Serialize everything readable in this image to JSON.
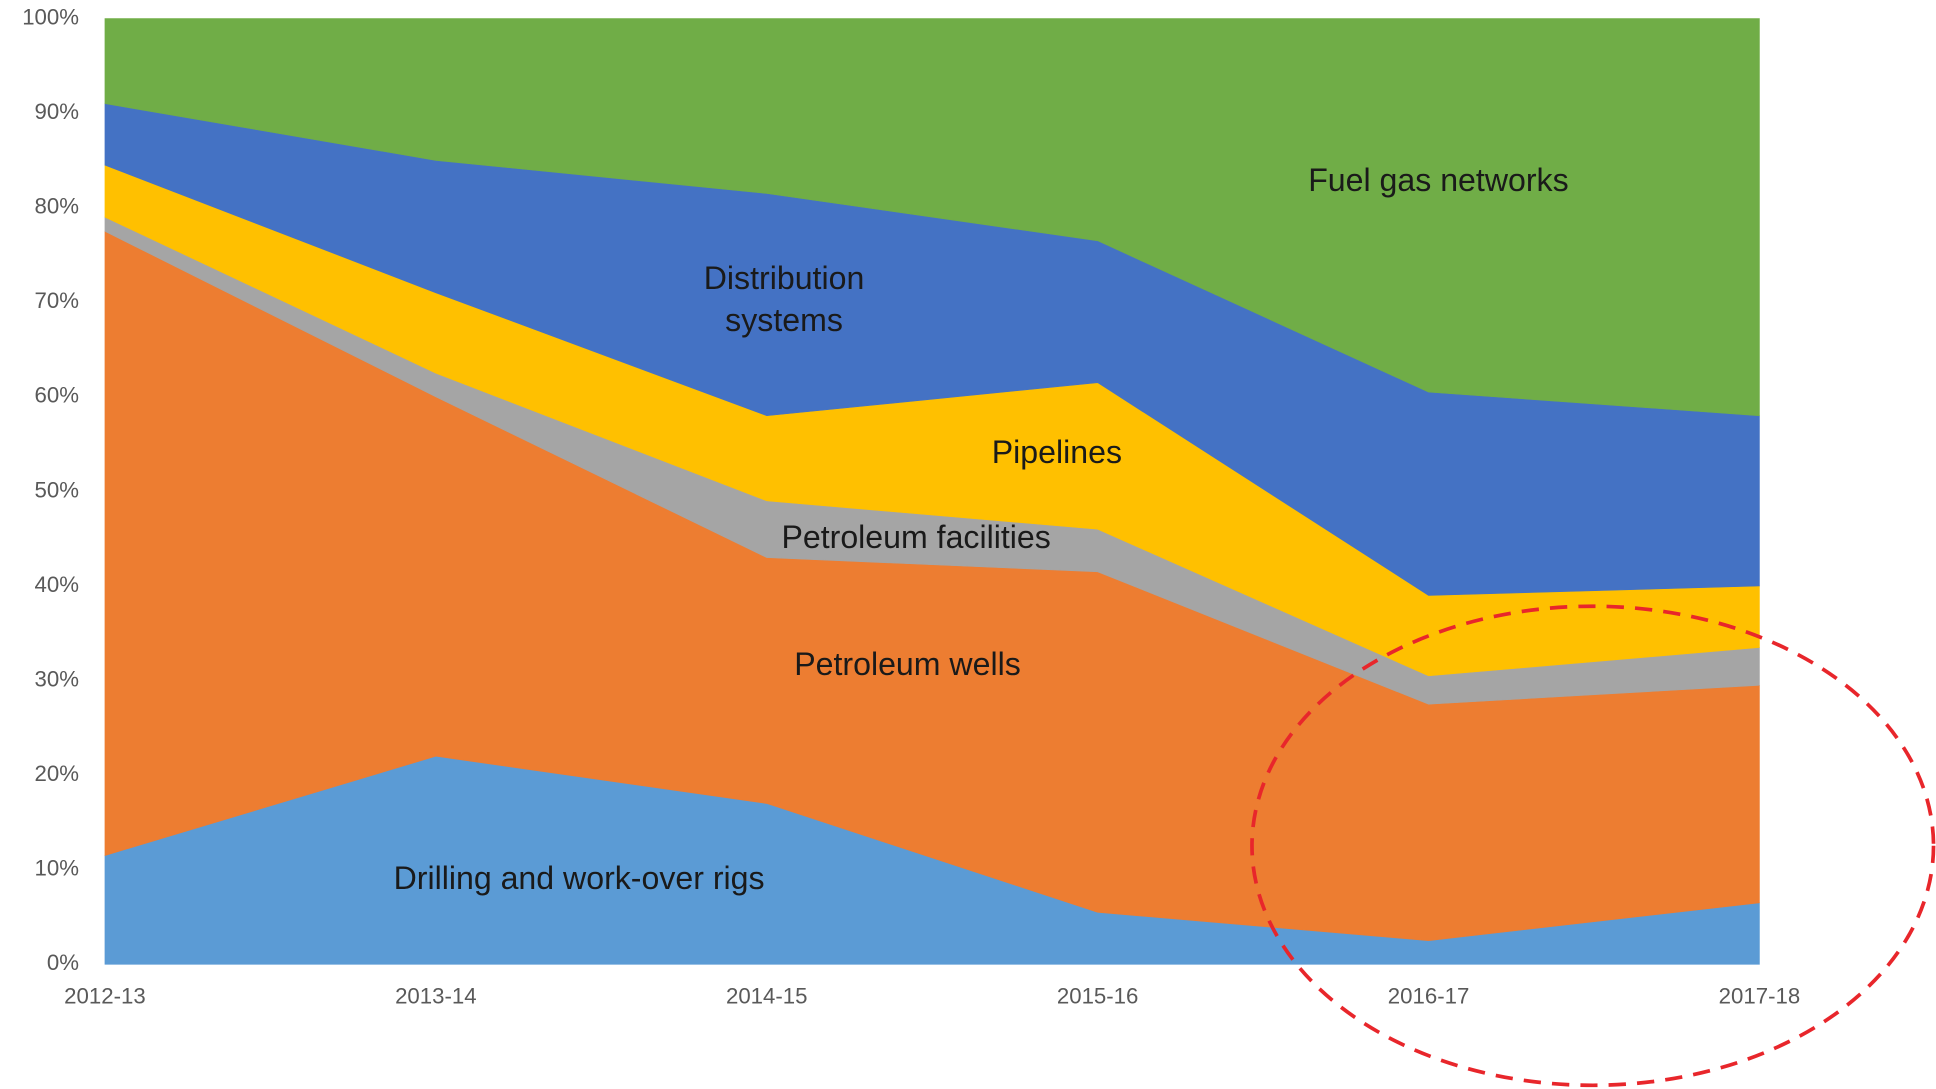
{
  "chart_data": {
    "type": "stacked_area",
    "categories": [
      "2012-13",
      "2013-14",
      "2014-15",
      "2015-16",
      "2016-17",
      "2017-18"
    ],
    "series": [
      {
        "name": "Drilling and work-over rigs",
        "color": "#5b9bd5",
        "values": [
          11.5,
          22,
          17,
          5.5,
          2.5,
          6.5
        ]
      },
      {
        "name": "Petroleum wells",
        "color": "#ed7d31",
        "values": [
          66,
          38,
          26,
          36,
          25,
          23
        ]
      },
      {
        "name": "Petroleum facilities",
        "color": "#a5a5a5",
        "values": [
          1.5,
          2.5,
          6,
          4.5,
          3,
          4
        ]
      },
      {
        "name": "Pipelines",
        "color": "#ffc000",
        "values": [
          5.5,
          8.5,
          9,
          15.5,
          8.5,
          6.5
        ]
      },
      {
        "name": "Distribution systems",
        "color": "#4472c4",
        "values": [
          6.5,
          14,
          23.5,
          15,
          21.5,
          18
        ]
      },
      {
        "name": "Fuel gas networks",
        "color": "#70ad47",
        "values": [
          9,
          15,
          18.5,
          23.5,
          39.5,
          42
        ]
      }
    ],
    "ylim": [
      0,
      100
    ],
    "yticks": [
      {
        "value": 0,
        "label": "0%"
      },
      {
        "value": 10,
        "label": "10%"
      },
      {
        "value": 20,
        "label": "20%"
      },
      {
        "value": 30,
        "label": "30%"
      },
      {
        "value": 40,
        "label": "40%"
      },
      {
        "value": 50,
        "label": "50%"
      },
      {
        "value": 60,
        "label": "60%"
      },
      {
        "value": 70,
        "label": "70%"
      },
      {
        "value": 80,
        "label": "80%"
      },
      {
        "value": 90,
        "label": "90%"
      },
      {
        "value": 100,
        "label": "100%"
      }
    ]
  }
}
